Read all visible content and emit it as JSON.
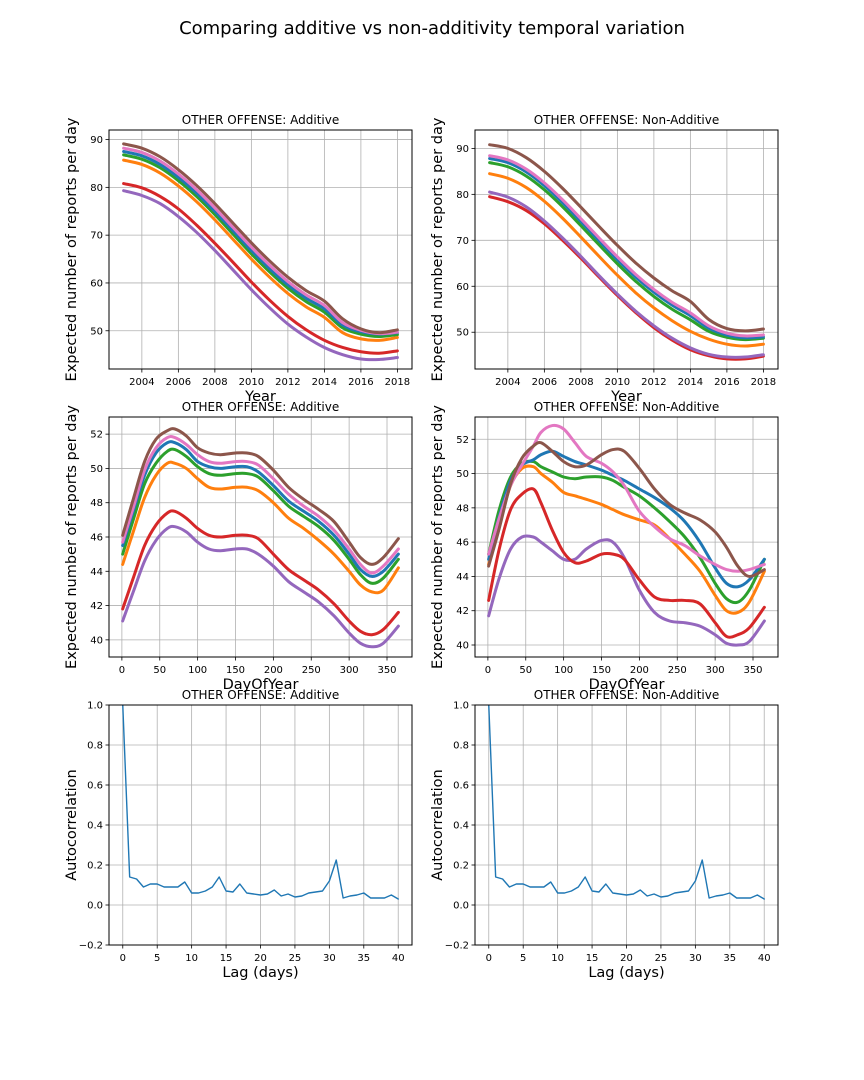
{
  "figure": {
    "title": "Comparing additive vs non-additivity temporal variation"
  },
  "colors": {
    "blue": "#1f77b4",
    "orange": "#ff7f0e",
    "green": "#2ca02c",
    "red": "#d62728",
    "purple": "#9467bd",
    "brown": "#8c564b",
    "pink": "#e377c2",
    "grid": "#b0b0b0"
  },
  "chart_data": [
    {
      "id": "year-additive",
      "type": "line",
      "title": "OTHER OFFENSE: Additive",
      "xlabel": "Year",
      "ylabel": "Expected number of reports per day",
      "xlim": [
        2002.2,
        2018.8
      ],
      "ylim": [
        42,
        92
      ],
      "xticks": [
        2004,
        2006,
        2008,
        2010,
        2012,
        2014,
        2016,
        2018
      ],
      "yticks": [
        50,
        60,
        70,
        80,
        90
      ],
      "grid": true,
      "x": [
        2003,
        2004,
        2005,
        2006,
        2007,
        2008,
        2009,
        2010,
        2011,
        2012,
        2013,
        2014,
        2015,
        2016,
        2017,
        2018
      ],
      "series": [
        {
          "color": "purple",
          "values": [
            79.3,
            78.3,
            76.6,
            73.9,
            70.6,
            66.8,
            62.7,
            58.6,
            54.8,
            51.4,
            48.7,
            46.5,
            45.0,
            44.1,
            44.0,
            44.4
          ]
        },
        {
          "color": "red",
          "values": [
            80.8,
            79.9,
            78.1,
            75.5,
            72.1,
            68.3,
            64.3,
            60.2,
            56.4,
            53.0,
            50.2,
            48.0,
            46.5,
            45.6,
            45.3,
            45.8
          ]
        },
        {
          "color": "orange",
          "values": [
            85.7,
            84.8,
            83.0,
            80.3,
            77.0,
            73.2,
            69.1,
            65.0,
            61.2,
            57.8,
            55.0,
            52.8,
            49.6,
            48.3,
            48.0,
            48.6
          ]
        },
        {
          "color": "green",
          "values": [
            86.8,
            85.9,
            84.1,
            81.4,
            78.1,
            74.3,
            70.2,
            66.1,
            62.3,
            58.9,
            56.1,
            53.9,
            50.6,
            49.3,
            48.8,
            49.2
          ]
        },
        {
          "color": "blue",
          "values": [
            87.5,
            86.6,
            84.8,
            82.1,
            78.8,
            75.0,
            70.9,
            66.8,
            63.0,
            59.6,
            56.8,
            54.6,
            51.2,
            49.8,
            49.3,
            49.6
          ]
        },
        {
          "color": "pink",
          "values": [
            88.2,
            87.3,
            85.5,
            82.8,
            79.5,
            75.7,
            71.6,
            67.5,
            63.7,
            60.3,
            57.5,
            55.3,
            51.7,
            50.1,
            49.4,
            49.7
          ]
        },
        {
          "color": "brown",
          "values": [
            89.1,
            88.2,
            86.4,
            83.7,
            80.4,
            76.6,
            72.5,
            68.4,
            64.6,
            61.2,
            58.4,
            56.2,
            52.5,
            50.4,
            49.6,
            50.2
          ]
        }
      ]
    },
    {
      "id": "year-nonadditive",
      "type": "line",
      "title": "OTHER OFFENSE: Non-Additive",
      "xlabel": "Year",
      "ylabel": "Expected number of reports per day",
      "xlim": [
        2002.2,
        2018.8
      ],
      "ylim": [
        42,
        94
      ],
      "xticks": [
        2004,
        2006,
        2008,
        2010,
        2012,
        2014,
        2016,
        2018
      ],
      "yticks": [
        50,
        60,
        70,
        80,
        90
      ],
      "grid": true,
      "x": [
        2003,
        2004,
        2005,
        2006,
        2007,
        2008,
        2009,
        2010,
        2011,
        2012,
        2013,
        2014,
        2015,
        2016,
        2017,
        2018
      ],
      "series": [
        {
          "color": "red",
          "values": [
            79.5,
            78.4,
            76.5,
            73.6,
            70.0,
            66.1,
            62.0,
            58.0,
            54.3,
            51.0,
            48.3,
            46.2,
            44.9,
            44.2,
            44.2,
            44.8
          ]
        },
        {
          "color": "purple",
          "values": [
            80.5,
            79.4,
            77.3,
            74.2,
            70.5,
            66.5,
            62.3,
            58.3,
            54.6,
            51.4,
            48.7,
            46.6,
            45.2,
            44.6,
            44.6,
            45.1
          ]
        },
        {
          "color": "orange",
          "values": [
            84.5,
            83.5,
            81.5,
            78.5,
            74.8,
            70.7,
            66.5,
            62.4,
            58.6,
            55.3,
            52.5,
            50.2,
            48.5,
            47.4,
            47.0,
            47.4
          ]
        },
        {
          "color": "green",
          "values": [
            86.9,
            86.0,
            84.0,
            81.0,
            77.3,
            73.2,
            69.0,
            64.9,
            61.1,
            57.8,
            55.0,
            52.7,
            50.2,
            48.9,
            48.4,
            48.7
          ]
        },
        {
          "color": "blue",
          "values": [
            87.8,
            86.9,
            84.9,
            81.9,
            78.2,
            74.1,
            69.9,
            65.8,
            62.0,
            58.7,
            55.9,
            53.6,
            50.9,
            49.4,
            48.8,
            49.0
          ]
        },
        {
          "color": "pink",
          "values": [
            88.4,
            87.5,
            85.5,
            82.5,
            78.8,
            74.7,
            70.5,
            66.4,
            62.6,
            59.3,
            56.5,
            54.2,
            51.4,
            49.8,
            49.2,
            49.4
          ]
        },
        {
          "color": "brown",
          "values": [
            90.8,
            90.0,
            88.0,
            85.0,
            81.3,
            77.2,
            73.0,
            68.9,
            65.1,
            61.8,
            59.0,
            56.7,
            52.8,
            50.8,
            50.3,
            50.7
          ]
        }
      ]
    },
    {
      "id": "doy-additive",
      "type": "line",
      "title": "OTHER OFFENSE: Additive",
      "xlabel": "DayOfYear",
      "ylabel": "Expected number of reports per day",
      "xlim": [
        -17,
        383
      ],
      "ylim": [
        39,
        53
      ],
      "xticks": [
        0,
        50,
        100,
        150,
        200,
        250,
        300,
        350
      ],
      "yticks": [
        40,
        42,
        44,
        46,
        48,
        50,
        52
      ],
      "grid": true,
      "x": [
        1,
        15,
        30,
        45,
        60,
        70,
        85,
        100,
        115,
        130,
        150,
        165,
        180,
        200,
        220,
        240,
        260,
        280,
        300,
        315,
        330,
        345,
        365
      ],
      "series": [
        {
          "color": "purple",
          "values": [
            41.1,
            42.8,
            44.6,
            45.8,
            46.5,
            46.6,
            46.3,
            45.7,
            45.3,
            45.2,
            45.3,
            45.3,
            45.0,
            44.3,
            43.4,
            42.8,
            42.2,
            41.4,
            40.4,
            39.8,
            39.6,
            39.8,
            40.8
          ]
        },
        {
          "color": "red",
          "values": [
            41.8,
            43.6,
            45.5,
            46.7,
            47.4,
            47.5,
            47.1,
            46.5,
            46.1,
            46.0,
            46.1,
            46.1,
            45.9,
            45.0,
            44.1,
            43.5,
            42.9,
            42.1,
            41.1,
            40.5,
            40.3,
            40.6,
            41.6
          ]
        },
        {
          "color": "orange",
          "values": [
            44.4,
            46.3,
            48.3,
            49.6,
            50.3,
            50.3,
            50.0,
            49.4,
            48.9,
            48.8,
            48.9,
            48.9,
            48.7,
            48.0,
            47.1,
            46.5,
            45.8,
            45.0,
            44.0,
            43.2,
            42.8,
            42.9,
            44.2
          ]
        },
        {
          "color": "green",
          "values": [
            45.0,
            47.0,
            49.1,
            50.3,
            51.0,
            51.1,
            50.7,
            50.1,
            49.7,
            49.6,
            49.7,
            49.7,
            49.5,
            48.7,
            47.8,
            47.2,
            46.6,
            45.8,
            44.7,
            43.8,
            43.3,
            43.6,
            44.7
          ]
        },
        {
          "color": "blue",
          "values": [
            45.5,
            47.5,
            49.6,
            50.9,
            51.5,
            51.5,
            51.1,
            50.4,
            50.1,
            50.0,
            50.1,
            50.1,
            49.8,
            49.0,
            48.1,
            47.5,
            46.9,
            46.1,
            45.0,
            44.1,
            43.7,
            44.0,
            45.0
          ]
        },
        {
          "color": "pink",
          "values": [
            45.7,
            47.7,
            49.9,
            51.2,
            51.8,
            51.8,
            51.4,
            50.8,
            50.4,
            50.3,
            50.4,
            50.4,
            50.2,
            49.4,
            48.5,
            47.8,
            47.2,
            46.4,
            45.3,
            44.4,
            43.9,
            44.3,
            45.3
          ]
        },
        {
          "color": "brown",
          "values": [
            46.1,
            48.2,
            50.4,
            51.7,
            52.2,
            52.3,
            51.9,
            51.2,
            50.9,
            50.8,
            50.9,
            50.9,
            50.7,
            49.9,
            48.9,
            48.2,
            47.6,
            46.9,
            45.7,
            44.8,
            44.4,
            44.8,
            45.9
          ]
        }
      ]
    },
    {
      "id": "doy-nonadditive",
      "type": "line",
      "title": "OTHER OFFENSE: Non-Additive",
      "xlabel": "DayOfYear",
      "ylabel": "Expected number of reports per day",
      "xlim": [
        -17,
        383
      ],
      "ylim": [
        39.3,
        53.3
      ],
      "xticks": [
        0,
        50,
        100,
        150,
        200,
        250,
        300,
        350
      ],
      "yticks": [
        40,
        42,
        44,
        46,
        48,
        50,
        52
      ],
      "grid": true,
      "x": [
        1,
        15,
        30,
        45,
        60,
        70,
        85,
        100,
        115,
        130,
        150,
        165,
        180,
        200,
        220,
        240,
        260,
        280,
        300,
        315,
        330,
        345,
        365
      ],
      "series": [
        {
          "color": "purple",
          "values": [
            41.7,
            43.9,
            45.6,
            46.3,
            46.3,
            46.0,
            45.5,
            45.0,
            45.0,
            45.6,
            46.1,
            46.0,
            45.1,
            43.2,
            41.9,
            41.4,
            41.3,
            41.1,
            40.6,
            40.1,
            40.0,
            40.2,
            41.4
          ]
        },
        {
          "color": "red",
          "values": [
            42.6,
            45.6,
            47.9,
            48.8,
            49.1,
            48.3,
            46.7,
            45.4,
            44.8,
            44.9,
            45.3,
            45.3,
            45.0,
            43.8,
            42.8,
            42.6,
            42.6,
            42.4,
            41.3,
            40.5,
            40.6,
            41.0,
            42.2
          ]
        },
        {
          "color": "orange",
          "values": [
            44.7,
            47.0,
            49.3,
            50.3,
            50.4,
            50.0,
            49.5,
            48.9,
            48.7,
            48.5,
            48.2,
            47.9,
            47.6,
            47.3,
            47.0,
            46.2,
            45.3,
            44.3,
            42.9,
            42.0,
            41.9,
            42.5,
            44.3
          ]
        },
        {
          "color": "green",
          "values": [
            45.3,
            47.9,
            49.8,
            50.6,
            50.7,
            50.4,
            50.1,
            49.8,
            49.7,
            49.8,
            49.8,
            49.6,
            49.2,
            48.7,
            48.0,
            47.2,
            46.3,
            45.1,
            43.6,
            42.7,
            42.5,
            43.2,
            45.0
          ]
        },
        {
          "color": "blue",
          "values": [
            45.0,
            47.5,
            49.6,
            50.5,
            50.8,
            51.1,
            51.3,
            51.0,
            50.7,
            50.5,
            50.2,
            49.9,
            49.6,
            49.1,
            48.6,
            48.0,
            47.2,
            46.0,
            44.5,
            43.6,
            43.4,
            43.8,
            45.0
          ]
        },
        {
          "color": "pink",
          "values": [
            45.3,
            47.4,
            49.3,
            50.5,
            51.6,
            52.4,
            52.8,
            52.6,
            51.8,
            51.0,
            50.6,
            50.1,
            49.3,
            47.8,
            46.9,
            46.2,
            45.8,
            45.2,
            44.7,
            44.4,
            44.3,
            44.4,
            44.7
          ]
        },
        {
          "color": "brown",
          "values": [
            44.6,
            46.8,
            49.4,
            50.9,
            51.6,
            51.8,
            51.3,
            50.7,
            50.4,
            50.5,
            51.1,
            51.4,
            51.3,
            50.3,
            49.1,
            48.2,
            47.7,
            47.3,
            46.6,
            45.7,
            44.6,
            44.0,
            44.4
          ]
        }
      ]
    },
    {
      "id": "acf-additive",
      "type": "line",
      "title": "OTHER OFFENSE: Additive",
      "xlabel": "Lag (days)",
      "ylabel": "Autocorrelation",
      "xlim": [
        -2,
        42
      ],
      "ylim": [
        -0.2,
        1.0
      ],
      "xticks": [
        0,
        5,
        10,
        15,
        20,
        25,
        30,
        35,
        40
      ],
      "yticks": [
        -0.2,
        0.0,
        0.2,
        0.4,
        0.6,
        0.8,
        1.0
      ],
      "ytick_labels": [
        "−0.2",
        "0.0",
        "0.2",
        "0.4",
        "0.6",
        "0.8",
        "1.0"
      ],
      "grid": true,
      "x": [
        0,
        1,
        2,
        3,
        4,
        5,
        6,
        7,
        8,
        9,
        10,
        11,
        12,
        13,
        14,
        15,
        16,
        17,
        18,
        19,
        20,
        21,
        22,
        23,
        24,
        25,
        26,
        27,
        28,
        29,
        30,
        31,
        32,
        33,
        34,
        35,
        36,
        37,
        38,
        39,
        40
      ],
      "series": [
        {
          "color": "blue",
          "values": [
            1.0,
            0.14,
            0.13,
            0.09,
            0.105,
            0.105,
            0.09,
            0.09,
            0.09,
            0.115,
            0.06,
            0.06,
            0.07,
            0.09,
            0.14,
            0.07,
            0.065,
            0.105,
            0.06,
            0.055,
            0.05,
            0.055,
            0.075,
            0.045,
            0.055,
            0.04,
            0.045,
            0.06,
            0.065,
            0.07,
            0.12,
            0.225,
            0.035,
            0.045,
            0.05,
            0.06,
            0.035,
            0.035,
            0.035,
            0.05,
            0.03
          ]
        }
      ]
    },
    {
      "id": "acf-nonadditive",
      "type": "line",
      "title": "OTHER OFFENSE: Non-Additive",
      "xlabel": "Lag (days)",
      "ylabel": "Autocorrelation",
      "xlim": [
        -2,
        42
      ],
      "ylim": [
        -0.2,
        1.0
      ],
      "xticks": [
        0,
        5,
        10,
        15,
        20,
        25,
        30,
        35,
        40
      ],
      "yticks": [
        -0.2,
        0.0,
        0.2,
        0.4,
        0.6,
        0.8,
        1.0
      ],
      "ytick_labels": [
        "−0.2",
        "0.0",
        "0.2",
        "0.4",
        "0.6",
        "0.8",
        "1.0"
      ],
      "grid": true,
      "x": [
        0,
        1,
        2,
        3,
        4,
        5,
        6,
        7,
        8,
        9,
        10,
        11,
        12,
        13,
        14,
        15,
        16,
        17,
        18,
        19,
        20,
        21,
        22,
        23,
        24,
        25,
        26,
        27,
        28,
        29,
        30,
        31,
        32,
        33,
        34,
        35,
        36,
        37,
        38,
        39,
        40
      ],
      "series": [
        {
          "color": "blue",
          "values": [
            1.0,
            0.14,
            0.13,
            0.09,
            0.105,
            0.105,
            0.09,
            0.09,
            0.09,
            0.115,
            0.06,
            0.06,
            0.07,
            0.09,
            0.14,
            0.07,
            0.065,
            0.105,
            0.06,
            0.055,
            0.05,
            0.055,
            0.075,
            0.045,
            0.055,
            0.04,
            0.045,
            0.06,
            0.065,
            0.07,
            0.12,
            0.225,
            0.035,
            0.045,
            0.05,
            0.06,
            0.035,
            0.035,
            0.035,
            0.05,
            0.03
          ]
        }
      ]
    }
  ]
}
